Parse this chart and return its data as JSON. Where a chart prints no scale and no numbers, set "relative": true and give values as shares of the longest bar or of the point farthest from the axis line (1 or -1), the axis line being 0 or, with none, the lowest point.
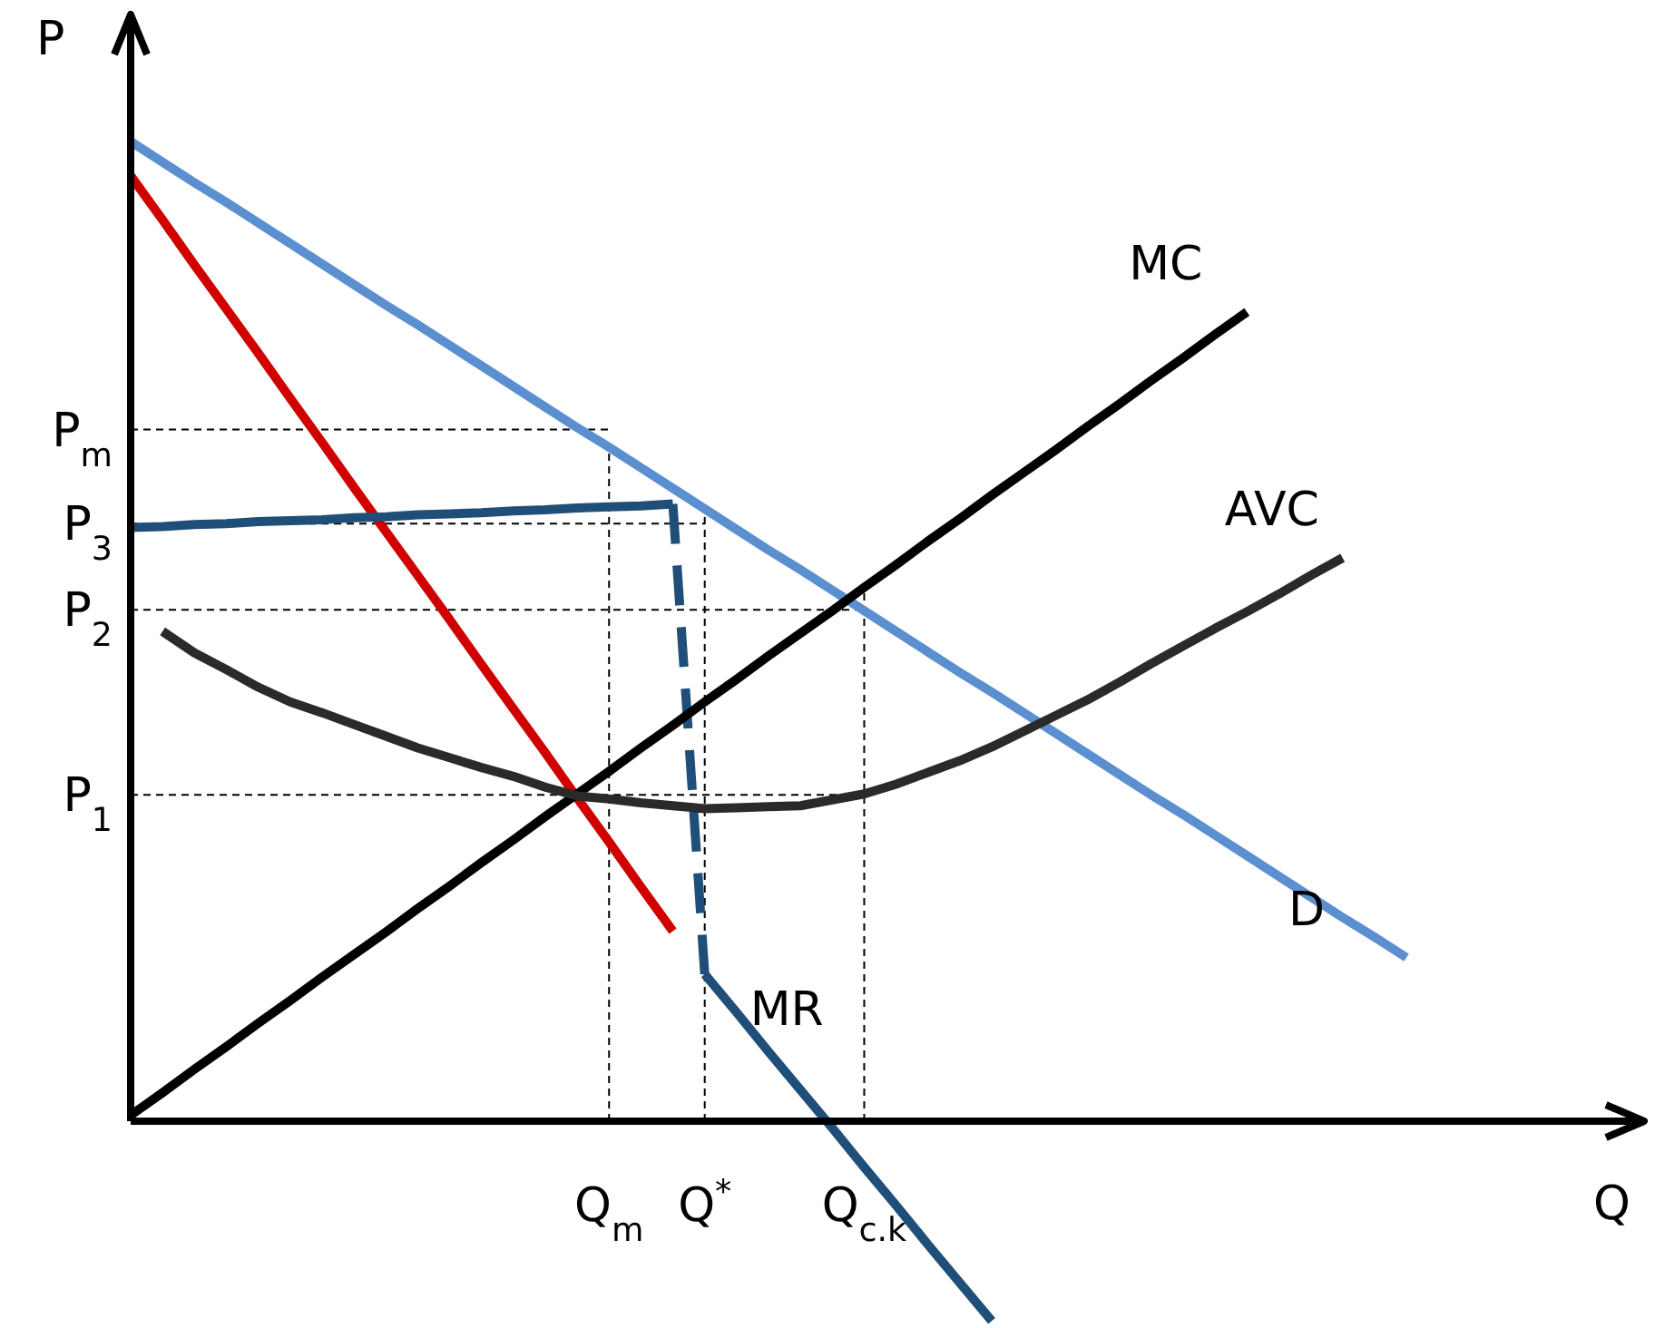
{
  "chart_data": {
    "type": "line",
    "relative": true,
    "xlabel": "Q",
    "ylabel": "P",
    "line_style": "solid",
    "marker": "none",
    "categories": [
      null,
      null,
      null,
      null,
      null,
      null,
      null,
      null,
      null,
      null,
      null,
      null,
      null,
      null,
      null,
      "Q$_{m}$",
      null,
      null,
      "Q$^{*}$",
      null,
      null,
      null,
      null,
      "Q$_{c.k}$",
      null,
      null,
      null,
      null,
      null,
      null,
      null,
      null,
      null,
      null,
      null,
      null,
      null,
      null,
      null,
      null,
      null
    ],
    "series": [
      {
        "name": "D",
        "color": "#5b8fd0",
        "values": [
          1.0,
          0.979,
          0.958,
          0.938,
          0.917,
          0.896,
          0.875,
          0.854,
          0.833,
          0.813,
          0.792,
          0.771,
          0.75,
          0.729,
          0.708,
          0.688,
          0.667,
          0.646,
          0.625,
          0.604,
          0.583,
          0.563,
          0.542,
          0.521,
          0.5,
          0.479,
          0.458,
          0.438,
          0.417,
          0.396,
          0.375,
          0.354,
          0.333,
          0.313,
          0.292,
          0.271,
          0.25,
          0.229,
          0.208,
          0.188,
          0.167
        ]
      },
      {
        "color": "#d00000",
        "values": [
          0.965,
          0.92,
          0.874,
          0.829,
          0.784,
          0.738,
          0.693,
          0.647,
          0.602,
          0.557,
          0.512,
          0.466,
          0.421,
          0.376,
          0.33,
          0.285,
          0.239,
          0.194,
          null,
          null,
          null,
          null,
          null,
          null,
          null,
          null,
          null,
          null,
          null,
          null,
          null,
          null,
          null,
          null,
          null,
          null,
          null,
          null,
          null,
          null,
          null
        ]
      },
      {
        "name": "MR",
        "color": "#1f4e79",
        "values": [
          null,
          null,
          null,
          null,
          null,
          null,
          null,
          null,
          null,
          null,
          null,
          null,
          null,
          null,
          null,
          null,
          null,
          null,
          0.15,
          0.111,
          0.071,
          0.032,
          -0.007,
          -0.047,
          -0.086,
          -0.126,
          -0.165,
          -0.204,
          null,
          null,
          null,
          null,
          null,
          null,
          null,
          null,
          null,
          null,
          null,
          null,
          null
        ]
      },
      {
        "color": "#1f4e79",
        "values": [
          0.606,
          0.607,
          0.609,
          0.61,
          0.612,
          0.613,
          0.614,
          0.616,
          0.617,
          0.619,
          0.62,
          0.621,
          0.623,
          0.624,
          0.626,
          0.627,
          0.628,
          0.63,
          null,
          null,
          null,
          null,
          null,
          null,
          null,
          null,
          null,
          null,
          null,
          null,
          null,
          null,
          null,
          null,
          null,
          null,
          null,
          null,
          null,
          null,
          null
        ]
      },
      {
        "color": "#1f4e79",
        "line_style": "dashed",
        "values": [
          null,
          null,
          null,
          null,
          null,
          null,
          null,
          null,
          null,
          null,
          null,
          null,
          null,
          null,
          null,
          null,
          null,
          0.63,
          0.15,
          null,
          null,
          null,
          null,
          null,
          null,
          null,
          null,
          null,
          null,
          null,
          null,
          null,
          null,
          null,
          null,
          null,
          null,
          null,
          null,
          null,
          null
        ]
      },
      {
        "name": "MC",
        "color": "#000000",
        "values": [
          0.006,
          0.029,
          0.053,
          0.076,
          0.1,
          0.123,
          0.147,
          0.17,
          0.193,
          0.217,
          0.24,
          0.264,
          0.287,
          0.311,
          0.334,
          0.357,
          0.381,
          0.404,
          0.428,
          0.451,
          0.475,
          0.498,
          0.521,
          0.545,
          0.568,
          0.592,
          0.615,
          0.639,
          0.662,
          0.685,
          0.709,
          0.732,
          0.756,
          0.779,
          0.803,
          0.826,
          null,
          null,
          null,
          null,
          null
        ]
      },
      {
        "name": "AVC",
        "color": "#2a2a2a",
        "values": [
          null,
          0.5,
          0.478,
          0.461,
          0.443,
          0.428,
          0.417,
          0.405,
          0.393,
          0.381,
          0.371,
          0.361,
          0.352,
          0.341,
          0.332,
          0.329,
          0.325,
          0.322,
          0.319,
          0.32,
          0.321,
          0.322,
          0.328,
          0.334,
          0.344,
          0.356,
          0.368,
          0.382,
          0.398,
          0.414,
          0.43,
          0.448,
          0.467,
          0.485,
          0.503,
          0.52,
          0.538,
          0.557,
          0.575,
          null,
          null
        ]
      }
    ],
    "ref_lines": [
      {
        "axis": "y",
        "value": 0.706,
        "label": "P$_{m}$"
      },
      {
        "axis": "y",
        "value": 0.61,
        "label": "P$_{3}$"
      },
      {
        "axis": "y",
        "value": 0.522,
        "label": "P$_{2}$"
      },
      {
        "axis": "y",
        "value": 0.333,
        "label": "P$_{1}$"
      },
      {
        "axis": "x",
        "value": "Q$_{m}$"
      },
      {
        "axis": "x",
        "value": "Q$^{*}$"
      },
      {
        "axis": "x",
        "value": "Q$_{c.k}$"
      }
    ]
  }
}
